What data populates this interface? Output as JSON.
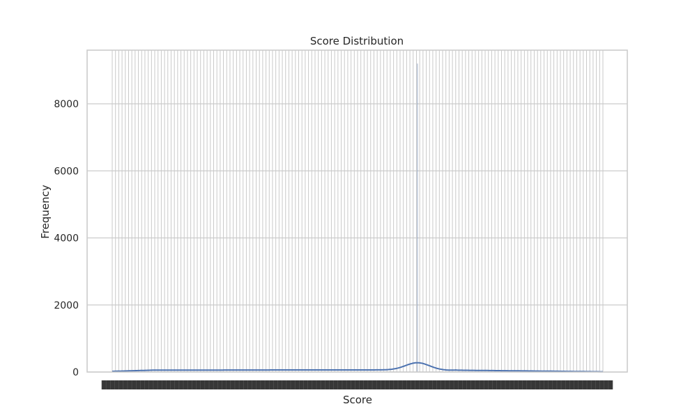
{
  "chart_data": {
    "type": "histogram",
    "title": "Score Distribution",
    "xlabel": "Score",
    "ylabel": "Frequency",
    "ylim": [
      0,
      9600
    ],
    "yticks": [
      0,
      2000,
      4000,
      6000,
      8000
    ],
    "grid": true,
    "x_tick_labels_illegible": true,
    "bin_count": 150,
    "spike": {
      "bin_fraction": 0.622,
      "value": 9200
    },
    "kde": {
      "baseline_value": 55,
      "left_value": 20,
      "peak_fraction": 0.622,
      "peak_value": 270
    },
    "colors": {
      "bars": "#c9c9c9",
      "kde": "#4c72b0",
      "spike": "#9aaac4",
      "grid": "#cccccc",
      "text": "#262626"
    }
  }
}
